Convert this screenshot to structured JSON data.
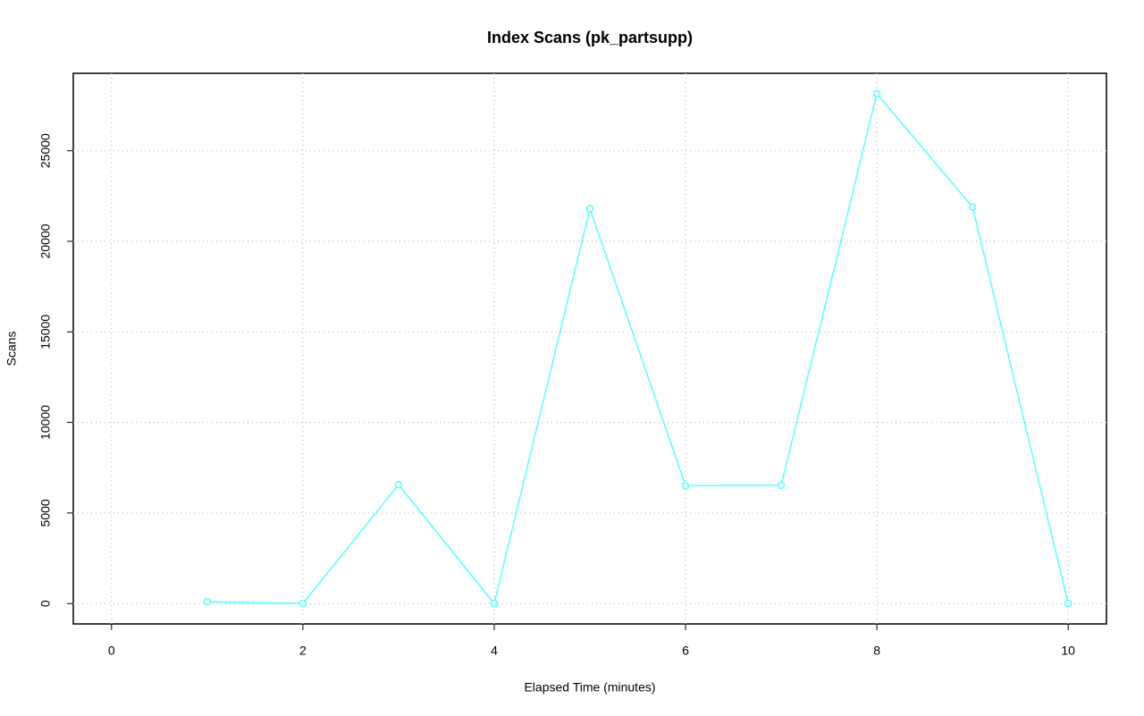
{
  "chart_data": {
    "type": "line",
    "title": "Index Scans (pk_partsupp)",
    "x_label": "Elapsed Time (minutes)",
    "y_label": "Scans",
    "x": [
      1,
      2,
      3,
      4,
      5,
      6,
      7,
      8,
      9,
      10
    ],
    "series": [
      {
        "name": "pk_partsupp",
        "color": "#55ffff",
        "values": [
          100,
          0,
          6560,
          0,
          21800,
          6510,
          6530,
          28150,
          21890,
          0
        ]
      }
    ],
    "xlim": [
      -0.4,
      10.4
    ],
    "xticks": [
      0,
      2,
      4,
      6,
      8,
      10
    ],
    "ylim": [
      -1126,
      29276
    ],
    "yticks": [
      0,
      5000,
      10000,
      15000,
      20000,
      25000
    ],
    "grid": true
  }
}
